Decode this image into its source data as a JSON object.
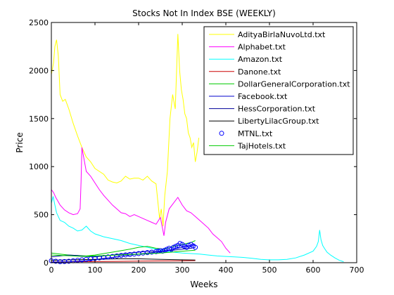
{
  "chart_data": {
    "type": "line",
    "title": "Stocks Not In Index BSE (WEEKLY)",
    "xlabel": "Weeks",
    "ylabel": "Price",
    "xlim": [
      0,
      700
    ],
    "ylim": [
      0,
      2500
    ],
    "xticks": [
      0,
      100,
      200,
      300,
      400,
      500,
      600,
      700
    ],
    "yticks": [
      0,
      500,
      1000,
      1500,
      2000,
      2500
    ],
    "grid": false,
    "legend_position": "top-right",
    "series": [
      {
        "name": "AdityaBirlaNuvoLtd.txt",
        "color": "#ffff00",
        "marker": "none",
        "x": [
          0,
          5,
          8,
          12,
          16,
          20,
          26,
          32,
          40,
          50,
          60,
          70,
          80,
          90,
          100,
          110,
          120,
          130,
          140,
          150,
          160,
          170,
          180,
          190,
          200,
          210,
          220,
          230,
          240,
          248,
          252,
          256,
          260,
          266,
          272,
          278,
          284,
          290,
          294,
          298,
          302,
          306,
          310,
          314,
          318,
          322,
          326,
          330,
          334,
          338
        ],
        "y": [
          1960,
          2080,
          2250,
          2320,
          2150,
          1750,
          1680,
          1700,
          1600,
          1450,
          1320,
          1200,
          1100,
          1050,
          980,
          950,
          920,
          860,
          840,
          830,
          850,
          900,
          870,
          880,
          880,
          860,
          900,
          850,
          820,
          460,
          560,
          380,
          700,
          950,
          1500,
          1750,
          1600,
          2380,
          2000,
          1800,
          1700,
          1550,
          1500,
          1350,
          1300,
          1200,
          1250,
          1050,
          1150,
          1300
        ]
      },
      {
        "name": "Alphabet.txt",
        "color": "#ff00ff",
        "marker": "none",
        "x": [
          0,
          5,
          10,
          15,
          20,
          30,
          40,
          50,
          60,
          66,
          68,
          70,
          72,
          76,
          80,
          90,
          100,
          110,
          120,
          130,
          140,
          150,
          160,
          170,
          180,
          190,
          200,
          210,
          220,
          230,
          240,
          250,
          258,
          262,
          270,
          280,
          290,
          300,
          310,
          320,
          330,
          340,
          350,
          360,
          370,
          380,
          390,
          400,
          410
        ],
        "y": [
          760,
          730,
          680,
          640,
          600,
          550,
          520,
          500,
          510,
          560,
          840,
          1200,
          1150,
          1050,
          950,
          900,
          830,
          760,
          700,
          650,
          600,
          560,
          520,
          510,
          480,
          500,
          480,
          460,
          440,
          420,
          400,
          470,
          280,
          420,
          560,
          620,
          680,
          600,
          540,
          520,
          480,
          440,
          400,
          360,
          300,
          260,
          220,
          150,
          100
        ]
      },
      {
        "name": "Amazon.txt",
        "color": "#00ffff",
        "marker": "none",
        "x": [
          0,
          4,
          8,
          12,
          20,
          30,
          40,
          50,
          60,
          70,
          80,
          90,
          100,
          120,
          140,
          160,
          180,
          200,
          220,
          240,
          260,
          280,
          300,
          320,
          340,
          360,
          380,
          400,
          420,
          440,
          460,
          480,
          500,
          520,
          540,
          560,
          580,
          600,
          608,
          612,
          615,
          618,
          622,
          626,
          632,
          640,
          650,
          660,
          670
        ],
        "y": [
          620,
          690,
          600,
          520,
          440,
          420,
          380,
          360,
          330,
          340,
          380,
          330,
          300,
          270,
          250,
          230,
          200,
          180,
          160,
          140,
          120,
          110,
          100,
          95,
          90,
          80,
          70,
          65,
          60,
          55,
          45,
          35,
          30,
          30,
          35,
          50,
          80,
          120,
          170,
          220,
          340,
          240,
          180,
          150,
          110,
          80,
          50,
          25,
          10
        ]
      },
      {
        "name": "Danone.txt",
        "color": "#cc0000",
        "marker": "none",
        "x": [
          0,
          50,
          100,
          150,
          200,
          250,
          300,
          330
        ],
        "y": [
          8,
          10,
          12,
          14,
          16,
          18,
          20,
          22
        ]
      },
      {
        "name": "DollarGeneralCorporation.txt",
        "color": "#00cc00",
        "marker": "none",
        "x": [
          0,
          20,
          40,
          60,
          80,
          100,
          120,
          140,
          160,
          180,
          200,
          220,
          240,
          260,
          280,
          300,
          320,
          330
        ],
        "y": [
          100,
          90,
          80,
          75,
          70,
          80,
          95,
          110,
          125,
          140,
          160,
          170,
          150,
          140,
          170,
          190,
          210,
          230
        ]
      },
      {
        "name": "Facebook.txt",
        "color": "#0000cc",
        "marker": "none",
        "x": [
          0,
          20,
          40,
          60,
          80,
          100,
          120,
          140,
          160,
          180,
          200,
          220,
          240,
          260,
          270,
          280,
          290,
          300,
          310,
          320,
          330
        ],
        "y": [
          5,
          8,
          10,
          15,
          20,
          30,
          45,
          55,
          70,
          80,
          90,
          100,
          110,
          120,
          130,
          140,
          150,
          160,
          170,
          180,
          190
        ]
      },
      {
        "name": "HessCorporation.txt",
        "color": "#000099",
        "marker": "none",
        "x": [
          0,
          20,
          40,
          60,
          80,
          100,
          120,
          140,
          160,
          180,
          200,
          220,
          240,
          260,
          280,
          300,
          320,
          330
        ],
        "y": [
          60,
          70,
          80,
          75,
          65,
          60,
          70,
          80,
          90,
          100,
          110,
          120,
          115,
          125,
          130,
          140,
          150,
          160
        ]
      },
      {
        "name": "LibertyLilacGroup.txt",
        "color": "#000000",
        "marker": "none",
        "x": [
          0,
          50,
          100,
          150,
          200,
          250,
          300,
          330
        ],
        "y": [
          25,
          30,
          35,
          40,
          40,
          35,
          30,
          28
        ]
      },
      {
        "name": "MTNL.txt",
        "color": "#0000ff",
        "marker": "circle",
        "x": [
          0,
          10,
          20,
          30,
          40,
          50,
          60,
          70,
          80,
          90,
          100,
          110,
          120,
          130,
          140,
          150,
          160,
          170,
          180,
          190,
          200,
          210,
          220,
          230,
          240,
          245,
          250,
          255,
          260,
          265,
          270,
          275,
          280,
          285,
          290,
          295,
          300,
          305,
          310,
          315,
          320,
          325,
          330
        ],
        "y": [
          20,
          15,
          10,
          12,
          15,
          20,
          25,
          30,
          35,
          40,
          45,
          50,
          55,
          60,
          65,
          70,
          75,
          80,
          85,
          90,
          95,
          100,
          105,
          110,
          115,
          120,
          125,
          120,
          130,
          140,
          150,
          140,
          160,
          170,
          180,
          200,
          190,
          170,
          160,
          180,
          190,
          175,
          160
        ]
      },
      {
        "name": "TajHotels.txt",
        "color": "#00cc00",
        "marker": "none",
        "x": [
          0,
          25,
          50,
          75,
          100,
          125,
          150,
          175,
          200,
          225,
          250,
          275,
          300,
          330
        ],
        "y": [
          80,
          75,
          70,
          65,
          70,
          75,
          80,
          85,
          90,
          95,
          100,
          110,
          120,
          130
        ]
      }
    ]
  }
}
